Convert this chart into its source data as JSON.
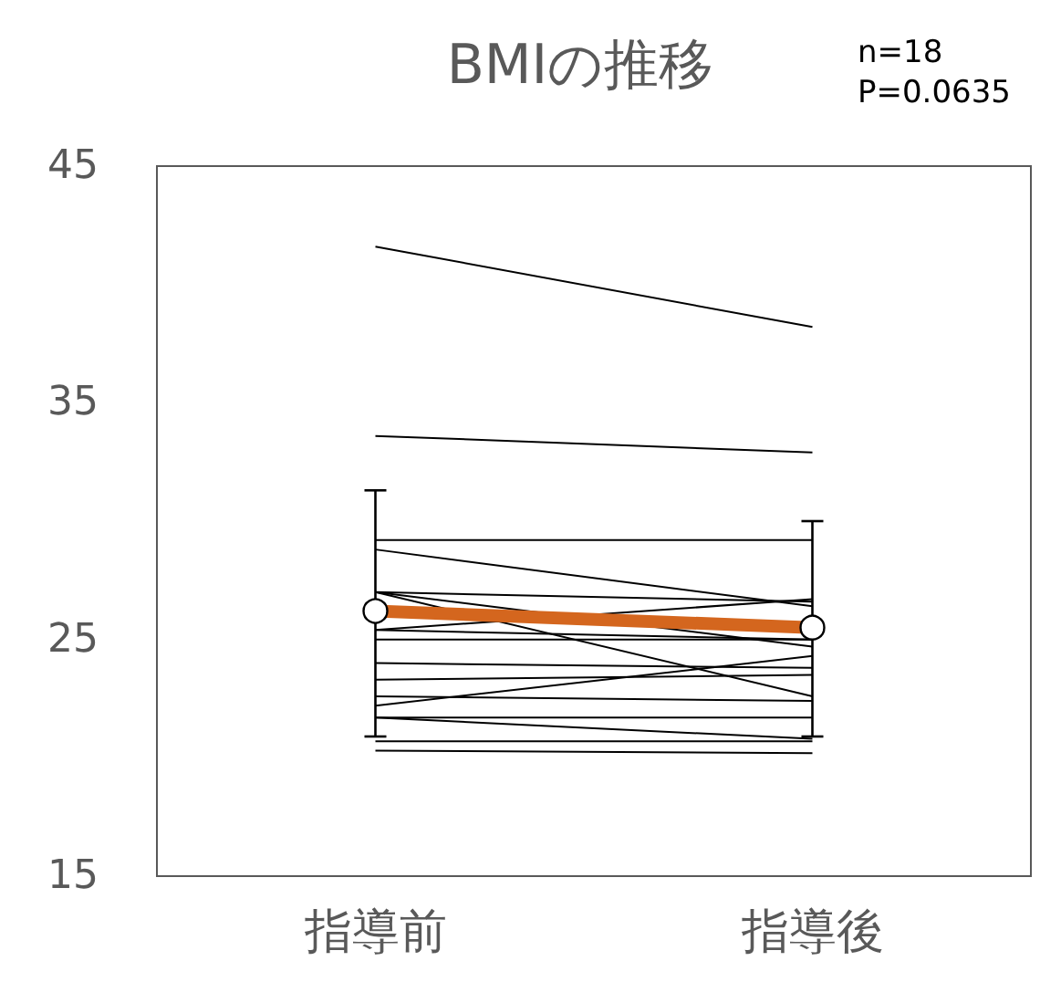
{
  "chart_data": {
    "type": "line",
    "title": "BMIの推移",
    "annotations": [
      "n=18",
      "P=0.0635"
    ],
    "categories": [
      "指導前",
      "指導後"
    ],
    "ylim": [
      15,
      45
    ],
    "yticks": [
      15,
      25,
      35,
      45
    ],
    "grid": false,
    "series": [
      {
        "color": "#000000",
        "marker": "none",
        "values": [
          41.6,
          38.2
        ]
      },
      {
        "color": "#000000",
        "marker": "none",
        "values": [
          33.6,
          32.9
        ]
      },
      {
        "color": "#000000",
        "marker": "none",
        "values": [
          29.2,
          29.2
        ]
      },
      {
        "color": "#000000",
        "marker": "none",
        "values": [
          28.8,
          26.4
        ]
      },
      {
        "color": "#000000",
        "marker": "none",
        "values": [
          27.0,
          26.6
        ]
      },
      {
        "color": "#000000",
        "marker": "none",
        "values": [
          27.0,
          22.6
        ]
      },
      {
        "color": "#000000",
        "marker": "none",
        "values": [
          27.0,
          24.7
        ]
      },
      {
        "color": "#000000",
        "marker": "none",
        "values": [
          25.4,
          26.7
        ]
      },
      {
        "color": "#000000",
        "marker": "none",
        "values": [
          25.0,
          25.0
        ]
      },
      {
        "color": "#000000",
        "marker": "none",
        "values": [
          24.0,
          23.8
        ]
      },
      {
        "color": "#000000",
        "marker": "none",
        "values": [
          23.3,
          23.5
        ]
      },
      {
        "color": "#000000",
        "marker": "none",
        "values": [
          22.6,
          22.4
        ]
      },
      {
        "color": "#000000",
        "marker": "none",
        "values": [
          22.2,
          24.3
        ]
      },
      {
        "color": "#000000",
        "marker": "none",
        "values": [
          21.7,
          21.7
        ]
      },
      {
        "color": "#000000",
        "marker": "none",
        "values": [
          21.7,
          20.8
        ]
      },
      {
        "color": "#000000",
        "marker": "none",
        "values": [
          20.7,
          20.7
        ]
      },
      {
        "color": "#000000",
        "marker": "none",
        "values": [
          20.3,
          20.2
        ]
      },
      {
        "color": "#000000",
        "marker": "none",
        "values": [
          25.4,
          25.0
        ]
      },
      {
        "color": "#d4661e",
        "marker": "circle",
        "values": [
          26.2,
          25.5
        ],
        "errors": [
          [
            20.9,
            31.3
          ],
          [
            20.9,
            30.0
          ]
        ]
      }
    ]
  }
}
